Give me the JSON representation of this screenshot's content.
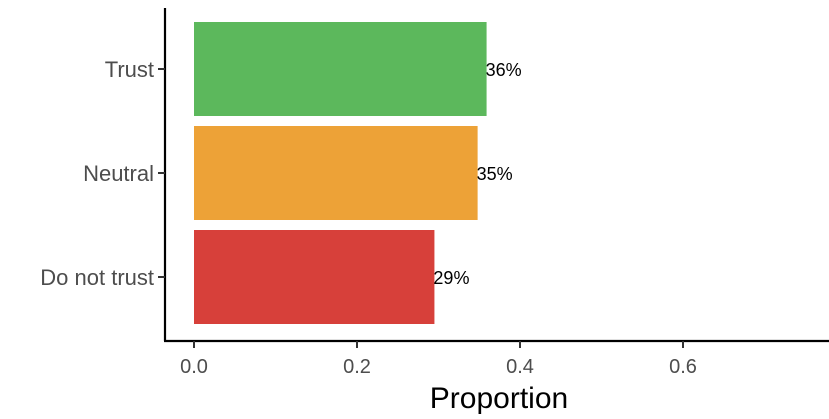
{
  "chart_data": {
    "type": "bar",
    "orientation": "horizontal",
    "categories": [
      "Do not trust",
      "Neutral",
      "Trust"
    ],
    "values": [
      0.295,
      0.348,
      0.359
    ],
    "labels": [
      "29%",
      "35%",
      "36%"
    ],
    "colors": [
      "#D7403A",
      "#EDA237",
      "#5CB85C"
    ],
    "xlabel": "Proportion",
    "ylabel": "",
    "xlim": [
      -0.04,
      0.75
    ],
    "xticks": [
      0,
      0.2,
      0.4,
      0.6
    ],
    "xtick_labels": [
      "0.0",
      "0.2",
      "0.4",
      "0.6"
    ],
    "grid": false,
    "legend": "none"
  }
}
